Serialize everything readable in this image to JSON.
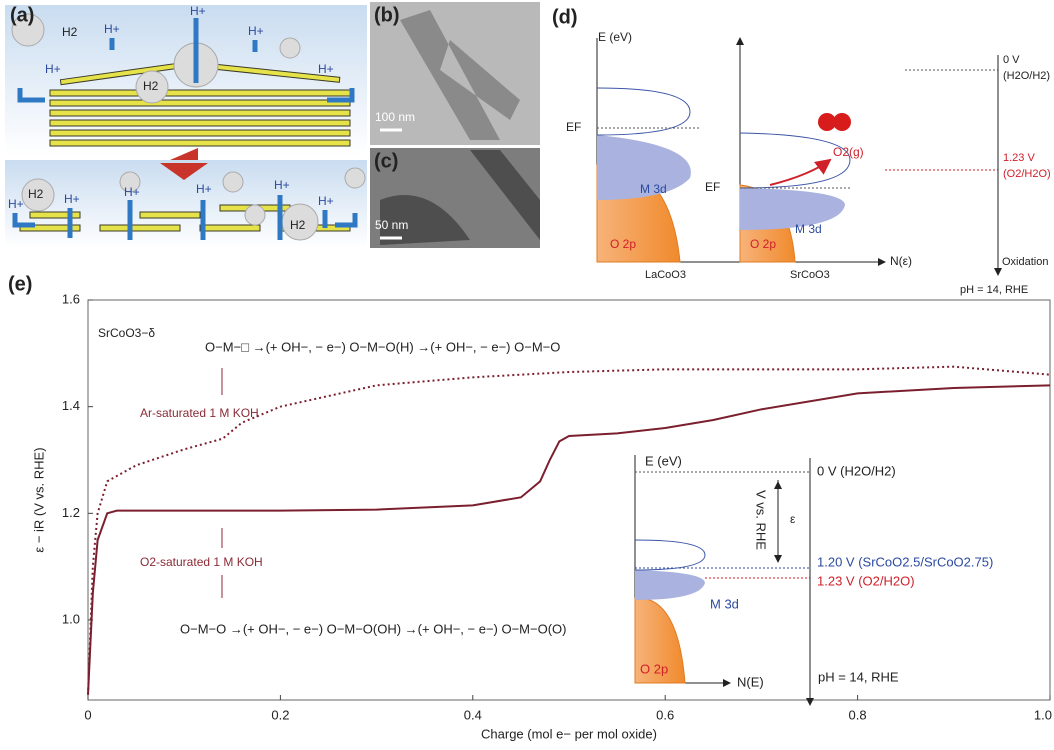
{
  "panels": {
    "a": {
      "label": "(a)",
      "texts": [
        "H2",
        "H+",
        "H+",
        "H+",
        "H+",
        "H2",
        "H+",
        "H2",
        "H+",
        "H+",
        "H+",
        "H+",
        "H+",
        "H2",
        "H+"
      ]
    },
    "b": {
      "label": "(b)",
      "scale": "100 nm"
    },
    "c": {
      "label": "(c)",
      "scale": "50 nm"
    },
    "d": {
      "label": "(d)",
      "y_axis": "E (eV)",
      "x_axis": "N(ε)",
      "fermi_left": "EF",
      "fermi_right": "EF",
      "m3d_left": "M 3d",
      "o2p_left": "O 2p",
      "m3d_right": "M 3d",
      "o2p_right": "O 2p",
      "o2": "O2(g)",
      "left_material": "LaCoO3",
      "right_material": "SrCoO3",
      "scale_zero": "0 V",
      "scale_zero_couple": "(H2O/H2)",
      "scale_red": "1.23 V",
      "scale_red_couple": "(O2/H2O)",
      "scale_direction": "Oxidation",
      "scale_note": "pH = 14, RHE"
    }
  },
  "chart_data": {
    "type": "line",
    "panel_label": "(e)",
    "x_label": "Charge (mol e− per mol oxide)",
    "y_label": "ε − iR (V vs. RHE)",
    "xlim": [
      0,
      1.0
    ],
    "ylim": [
      0.85,
      1.6
    ],
    "xticks": [
      0,
      0.2,
      0.4,
      0.6,
      0.8,
      {
        "value": 1,
        "label": "1.0"
      }
    ],
    "yticks": [
      {
        "value": 1,
        "label": "1.0"
      },
      1.2,
      1.4,
      1.6
    ],
    "series": [
      {
        "name": "O2-saturated 1 M KOH",
        "color": "#7b1f2e",
        "style": "solid",
        "x": [
          0,
          0.005,
          0.01,
          0.02,
          0.03,
          0.1,
          0.2,
          0.3,
          0.4,
          0.45,
          0.47,
          0.48,
          0.49,
          0.5,
          0.55,
          0.6,
          0.65,
          0.7,
          0.8,
          0.9,
          1.0
        ],
        "values": [
          0.86,
          1.05,
          1.15,
          1.2,
          1.205,
          1.205,
          1.205,
          1.207,
          1.215,
          1.23,
          1.26,
          1.3,
          1.335,
          1.345,
          1.35,
          1.36,
          1.375,
          1.395,
          1.425,
          1.435,
          1.44
        ]
      },
      {
        "name": "Ar-saturated 1 M KOH",
        "color": "#7b1f2e",
        "style": "dotted",
        "x": [
          0,
          0.005,
          0.01,
          0.02,
          0.05,
          0.1,
          0.14,
          0.16,
          0.2,
          0.3,
          0.4,
          0.5,
          0.6,
          0.7,
          0.8,
          0.9,
          1.0
        ],
        "values": [
          0.86,
          1.1,
          1.2,
          1.26,
          1.29,
          1.32,
          1.34,
          1.37,
          1.4,
          1.44,
          1.455,
          1.465,
          1.47,
          1.47,
          1.47,
          1.475,
          1.46
        ]
      }
    ],
    "annotations": {
      "compound": "SrCoO3−δ",
      "ar_reaction": "O−M−□  →(+ OH−, − e−)  O−M−O(H)  →(+ OH−, − e−)  O−M−O",
      "o2_reaction": "O−M−O  →(+ OH−, − e−)  O−M−O(OH)  →(+ OH−, − e−)  O−M−O(O)"
    },
    "inset": {
      "y_axis": "E (eV)",
      "x_axis": "N(E)",
      "zero": "0 V (H2O/H2)",
      "scale_label": "V vs. RHE",
      "epsilon": "ε",
      "blue_level": "1.20 V (SrCoO2.5/SrCoO2.75)",
      "red_level": "1.23 V (O2/H2O)",
      "m3d": "M 3d",
      "o2p": "O 2p",
      "note": "pH = 14, RHE"
    }
  }
}
